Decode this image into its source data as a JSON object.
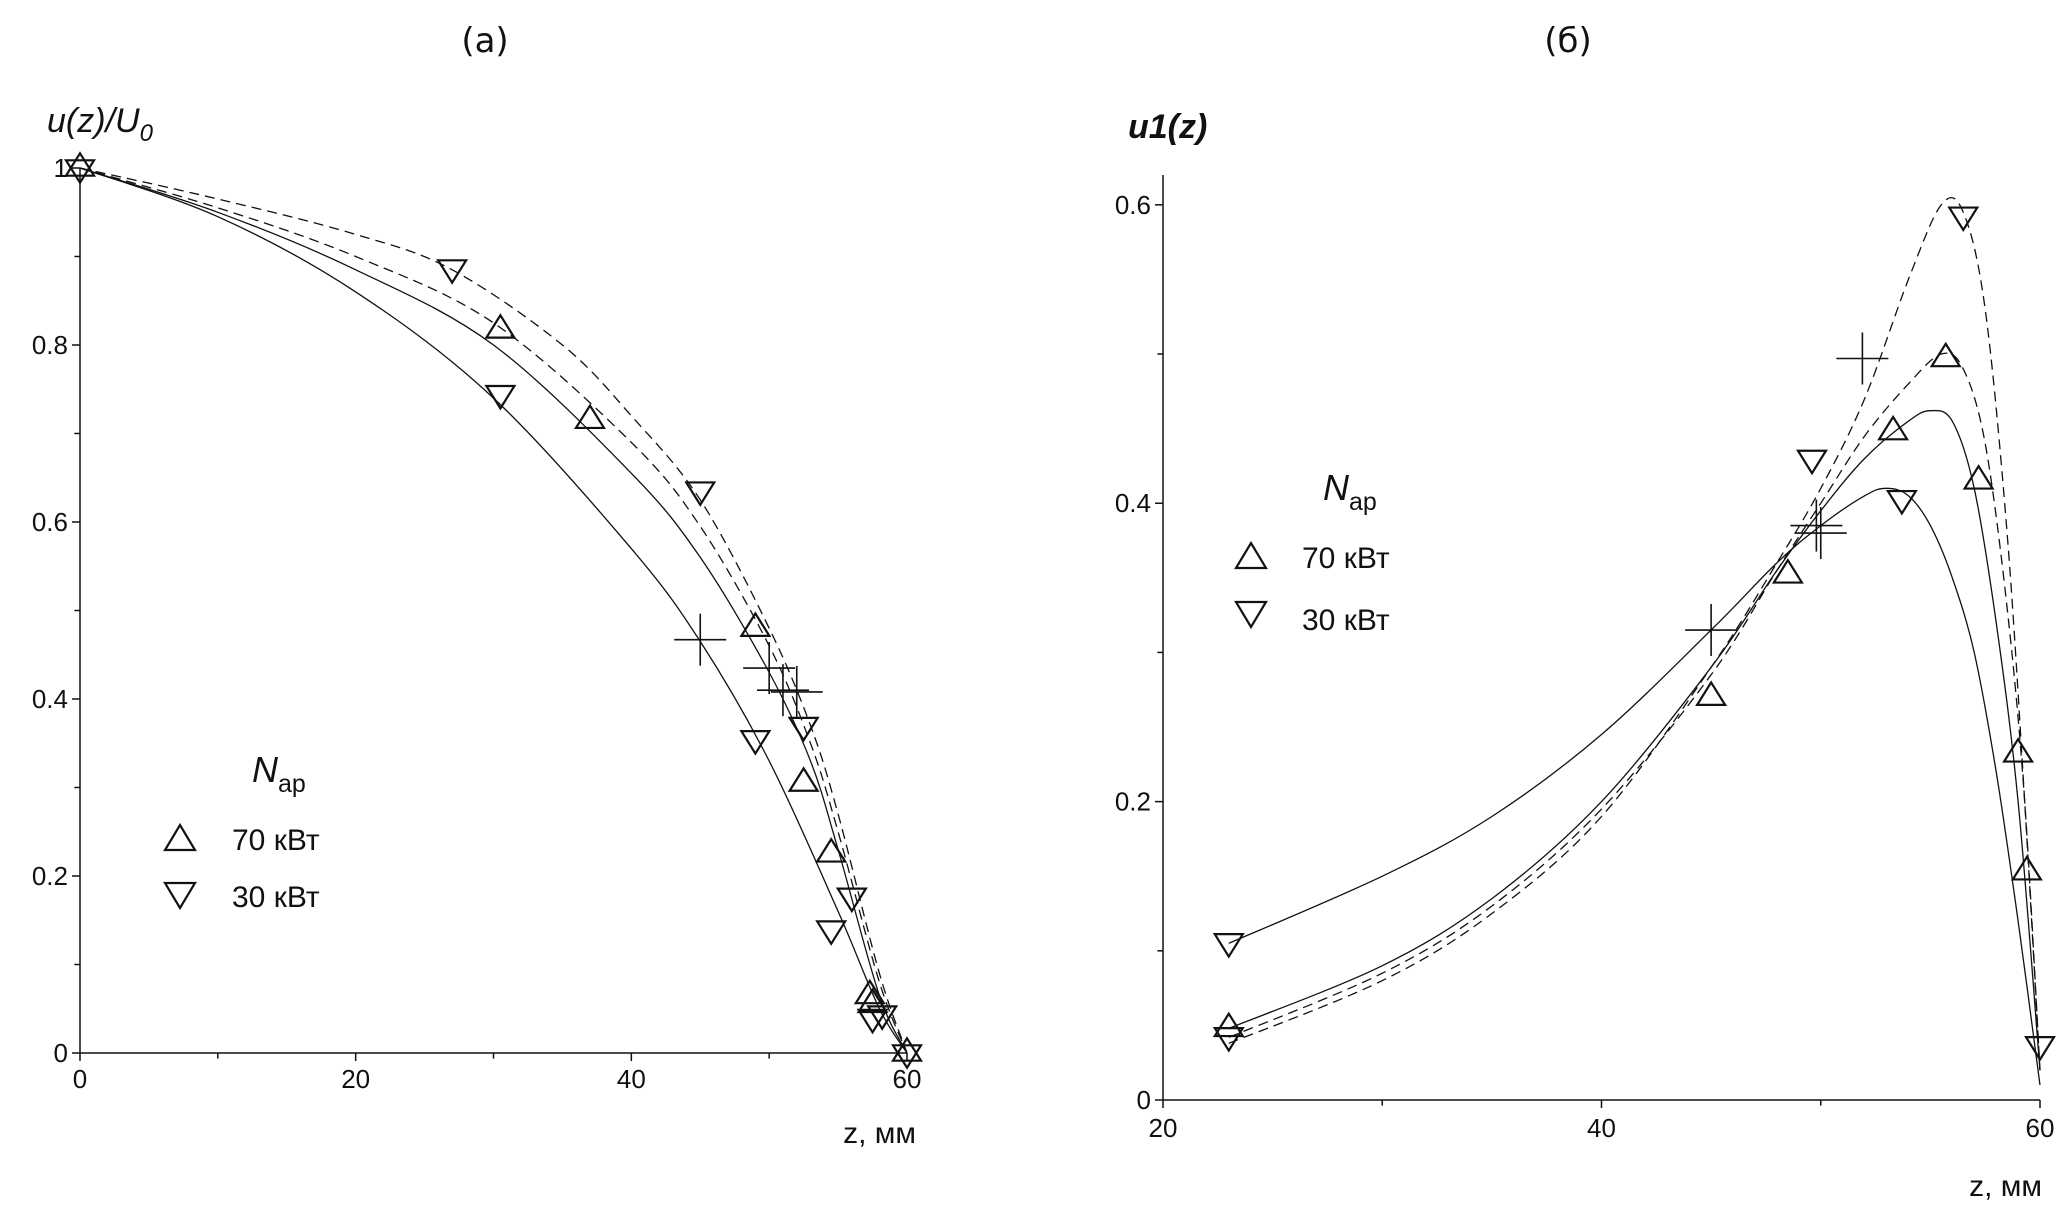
{
  "panels": [
    {
      "id": "a",
      "panel_label": "(а)",
      "ylabel_main": "u(z)/U",
      "ylabel_sub": "0",
      "xlabel": "z, мм",
      "legend": {
        "title_main": "N",
        "title_sub": "ар",
        "entries": [
          {
            "marker": "triangle-up",
            "label": "70 кВт"
          },
          {
            "marker": "triangle-down",
            "label": "30 кВт"
          }
        ]
      }
    },
    {
      "id": "b",
      "panel_label": "(б)",
      "ylabel_main": "u1(z)",
      "ylabel_sub": "",
      "xlabel": "z, мм",
      "legend": {
        "title_main": "N",
        "title_sub": "ар",
        "entries": [
          {
            "marker": "triangle-up",
            "label": "70 кВт"
          },
          {
            "marker": "triangle-down",
            "label": "30 кВт"
          }
        ]
      }
    }
  ],
  "chart_data": [
    {
      "type": "line",
      "xlim": [
        0,
        60
      ],
      "ylim": [
        0,
        1
      ],
      "x_ticks": [
        0,
        20,
        40,
        60
      ],
      "y_ticks": [
        0,
        0.2,
        0.4,
        0.6,
        0.8,
        1
      ],
      "x_tick_labels": [
        "0",
        "20",
        "40",
        "60"
      ],
      "y_tick_labels": [
        "0",
        "0.2",
        "0.4",
        "0.6",
        "0.8",
        "1"
      ],
      "legend_position": "bottom-left",
      "lines": [
        {
          "style": "solid",
          "points": [
            [
              0,
              1
            ],
            [
              10,
              0.945
            ],
            [
              20,
              0.86
            ],
            [
              30,
              0.74
            ],
            [
              40,
              0.57
            ],
            [
              45,
              0.465
            ],
            [
              50,
              0.33
            ],
            [
              55,
              0.16
            ],
            [
              58,
              0.05
            ],
            [
              60,
              0
            ]
          ]
        },
        {
          "style": "solid",
          "points": [
            [
              0,
              1
            ],
            [
              10,
              0.95
            ],
            [
              20,
              0.885
            ],
            [
              30,
              0.8
            ],
            [
              40,
              0.655
            ],
            [
              45,
              0.56
            ],
            [
              50,
              0.43
            ],
            [
              53,
              0.33
            ],
            [
              55,
              0.23
            ],
            [
              58,
              0.065
            ],
            [
              60,
              0
            ]
          ]
        },
        {
          "style": "dashed",
          "points": [
            [
              0,
              1
            ],
            [
              10,
              0.955
            ],
            [
              20,
              0.9
            ],
            [
              30,
              0.825
            ],
            [
              40,
              0.69
            ],
            [
              45,
              0.595
            ],
            [
              50,
              0.46
            ],
            [
              53,
              0.35
            ],
            [
              55,
              0.25
            ],
            [
              58,
              0.08
            ],
            [
              60,
              0
            ]
          ]
        },
        {
          "style": "dashed",
          "points": [
            [
              0,
              1
            ],
            [
              10,
              0.965
            ],
            [
              20,
              0.925
            ],
            [
              27,
              0.885
            ],
            [
              35,
              0.8
            ],
            [
              40,
              0.72
            ],
            [
              45,
              0.625
            ],
            [
              50,
              0.48
            ],
            [
              53,
              0.37
            ],
            [
              55,
              0.27
            ],
            [
              58,
              0.09
            ],
            [
              60,
              0
            ]
          ]
        }
      ],
      "crosses": [
        [
          45,
          0.467
        ],
        [
          50,
          0.435
        ],
        [
          51,
          0.41
        ],
        [
          52,
          0.408
        ]
      ],
      "markers_70kW": [
        [
          0,
          1
        ],
        [
          30.5,
          0.817
        ],
        [
          37,
          0.715
        ],
        [
          49,
          0.48
        ],
        [
          52.5,
          0.305
        ],
        [
          54.5,
          0.225
        ],
        [
          57.3,
          0.065
        ],
        [
          57.5,
          0.055
        ],
        [
          60,
          0
        ]
      ],
      "markers_30kW": [
        [
          0,
          1
        ],
        [
          27,
          0.887
        ],
        [
          30.5,
          0.745
        ],
        [
          45,
          0.636
        ],
        [
          49,
          0.355
        ],
        [
          52.5,
          0.37
        ],
        [
          54.5,
          0.14
        ],
        [
          56,
          0.177
        ],
        [
          57.5,
          0.04
        ],
        [
          58.2,
          0.044
        ],
        [
          60,
          0
        ]
      ]
    },
    {
      "type": "line",
      "xlim": [
        20,
        60
      ],
      "ylim": [
        0,
        0.62
      ],
      "x_ticks": [
        20,
        40,
        60
      ],
      "y_ticks": [
        0,
        0.2,
        0.4,
        0.6
      ],
      "x_tick_labels": [
        "20",
        "40",
        "60"
      ],
      "y_tick_labels": [
        "0",
        "0.2",
        "0.4",
        "0.6"
      ],
      "legend_position": "middle-left",
      "lines": [
        {
          "style": "solid",
          "points": [
            [
              23,
              0.105
            ],
            [
              30,
              0.15
            ],
            [
              35,
              0.19
            ],
            [
              40,
              0.245
            ],
            [
              45,
              0.315
            ],
            [
              48,
              0.36
            ],
            [
              50,
              0.385
            ],
            [
              52,
              0.405
            ],
            [
              53,
              0.41
            ],
            [
              54,
              0.405
            ],
            [
              55,
              0.385
            ],
            [
              56,
              0.35
            ],
            [
              57,
              0.3
            ],
            [
              58,
              0.22
            ],
            [
              59,
              0.12
            ],
            [
              60,
              0.01
            ]
          ]
        },
        {
          "style": "solid",
          "points": [
            [
              23,
              0.048
            ],
            [
              30,
              0.09
            ],
            [
              35,
              0.135
            ],
            [
              40,
              0.2
            ],
            [
              45,
              0.29
            ],
            [
              48,
              0.355
            ],
            [
              50,
              0.395
            ],
            [
              52,
              0.43
            ],
            [
              54,
              0.455
            ],
            [
              55,
              0.462
            ],
            [
              56,
              0.455
            ],
            [
              57,
              0.41
            ],
            [
              58,
              0.32
            ],
            [
              59,
              0.2
            ],
            [
              60,
              0.02
            ]
          ]
        },
        {
          "style": "dashed",
          "points": [
            [
              23,
              0.042
            ],
            [
              30,
              0.085
            ],
            [
              35,
              0.13
            ],
            [
              40,
              0.195
            ],
            [
              45,
              0.285
            ],
            [
              48,
              0.355
            ],
            [
              50,
              0.4
            ],
            [
              52,
              0.445
            ],
            [
              54,
              0.48
            ],
            [
              55.5,
              0.5
            ],
            [
              56.5,
              0.49
            ],
            [
              57.5,
              0.44
            ],
            [
              58.5,
              0.33
            ],
            [
              59.3,
              0.2
            ],
            [
              60,
              0.02
            ]
          ]
        },
        {
          "style": "dashed",
          "points": [
            [
              23,
              0.038
            ],
            [
              30,
              0.08
            ],
            [
              35,
              0.125
            ],
            [
              40,
              0.19
            ],
            [
              45,
              0.29
            ],
            [
              48,
              0.36
            ],
            [
              50,
              0.41
            ],
            [
              52,
              0.47
            ],
            [
              54,
              0.55
            ],
            [
              55.5,
              0.6
            ],
            [
              56.5,
              0.595
            ],
            [
              57.5,
              0.53
            ],
            [
              58.5,
              0.38
            ],
            [
              59.3,
              0.2
            ],
            [
              60,
              0.02
            ]
          ]
        }
      ],
      "crosses": [
        [
          45,
          0.315
        ],
        [
          49.8,
          0.385
        ],
        [
          50,
          0.38
        ],
        [
          51.9,
          0.497
        ]
      ],
      "markers_70kW": [
        [
          23,
          0.048
        ],
        [
          45,
          0.27
        ],
        [
          48.5,
          0.352
        ],
        [
          53.3,
          0.448
        ],
        [
          55.7,
          0.497
        ],
        [
          57.2,
          0.415
        ],
        [
          59,
          0.232
        ],
        [
          59.4,
          0.153
        ]
      ],
      "markers_30kW": [
        [
          23,
          0.043
        ],
        [
          23,
          0.106
        ],
        [
          49.6,
          0.43
        ],
        [
          53.7,
          0.403
        ],
        [
          56.5,
          0.593
        ],
        [
          60,
          0.037
        ]
      ]
    }
  ]
}
